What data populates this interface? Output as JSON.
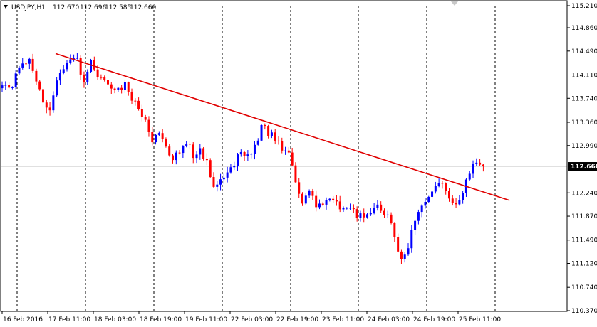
{
  "header": {
    "symbol": "USDJPY,H1",
    "open": "112.670",
    "high": "112.696",
    "low": "112.585",
    "close": "112.660"
  },
  "colors": {
    "bull": "#0000ff",
    "bear": "#ff0000",
    "trendline": "#e00000",
    "grid": "#000000",
    "current_price_line": "#c0c0c0",
    "price_tag_bg": "#000000"
  },
  "chart_data": {
    "type": "candlestick",
    "symbol": "USDJPY",
    "timeframe": "H1",
    "ylim": [
      110.37,
      115.21
    ],
    "y_ticks": [
      "115.210",
      "114.860",
      "114.490",
      "114.110",
      "113.740",
      "113.360",
      "112.990",
      "112.660",
      "112.240",
      "111.870",
      "111.490",
      "111.120",
      "110.740",
      "110.370"
    ],
    "x_tick_labels": [
      "16 Feb 2016",
      "17 Feb 11:00",
      "18 Feb 03:00",
      "18 Feb 19:00",
      "19 Feb 11:00",
      "22 Feb 03:00",
      "22 Feb 19:00",
      "23 Feb 11:00",
      "24 Feb 03:00",
      "24 Feb 19:00",
      "25 Feb 11:00"
    ],
    "current_price": "112.660",
    "price_path": [
      [
        0,
        113.9
      ],
      [
        3,
        113.93
      ],
      [
        5,
        114.25
      ],
      [
        8,
        114.35
      ],
      [
        10,
        114.0
      ],
      [
        12,
        113.7
      ],
      [
        14,
        113.55
      ],
      [
        16,
        114.05
      ],
      [
        18,
        114.25
      ],
      [
        20,
        114.4
      ],
      [
        22,
        114.35
      ],
      [
        24,
        113.95
      ],
      [
        26,
        114.3
      ],
      [
        28,
        114.05
      ],
      [
        30,
        114.0
      ],
      [
        32,
        113.9
      ],
      [
        34,
        113.85
      ],
      [
        36,
        113.95
      ],
      [
        38,
        113.7
      ],
      [
        40,
        113.6
      ],
      [
        42,
        113.35
      ],
      [
        44,
        113.1
      ],
      [
        46,
        113.2
      ],
      [
        48,
        112.95
      ],
      [
        50,
        112.75
      ],
      [
        52,
        112.9
      ],
      [
        54,
        113.05
      ],
      [
        56,
        112.85
      ],
      [
        58,
        112.9
      ],
      [
        60,
        112.7
      ],
      [
        62,
        112.3
      ],
      [
        64,
        112.45
      ],
      [
        66,
        112.55
      ],
      [
        68,
        112.7
      ],
      [
        70,
        112.9
      ],
      [
        72,
        112.85
      ],
      [
        74,
        112.95
      ],
      [
        76,
        113.3
      ],
      [
        78,
        113.2
      ],
      [
        80,
        113.1
      ],
      [
        82,
        112.95
      ],
      [
        84,
        112.85
      ],
      [
        86,
        112.45
      ],
      [
        88,
        112.1
      ],
      [
        90,
        112.25
      ],
      [
        92,
        112.05
      ],
      [
        94,
        112.1
      ],
      [
        96,
        112.2
      ],
      [
        98,
        112.05
      ],
      [
        100,
        111.95
      ],
      [
        102,
        112.0
      ],
      [
        104,
        111.9
      ],
      [
        106,
        111.85
      ],
      [
        108,
        111.9
      ],
      [
        110,
        112.0
      ],
      [
        112,
        111.9
      ],
      [
        114,
        111.8
      ],
      [
        116,
        111.3
      ],
      [
        118,
        111.2
      ],
      [
        120,
        111.6
      ],
      [
        122,
        111.9
      ],
      [
        124,
        112.1
      ],
      [
        126,
        112.25
      ],
      [
        128,
        112.4
      ],
      [
        130,
        112.3
      ],
      [
        132,
        112.05
      ],
      [
        134,
        112.15
      ],
      [
        136,
        112.4
      ],
      [
        138,
        112.75
      ],
      [
        140,
        112.7
      ],
      [
        141,
        112.66
      ]
    ],
    "trendline": {
      "start": [
        0,
        114.45
      ],
      "end": [
        156,
        112.12
      ]
    }
  }
}
